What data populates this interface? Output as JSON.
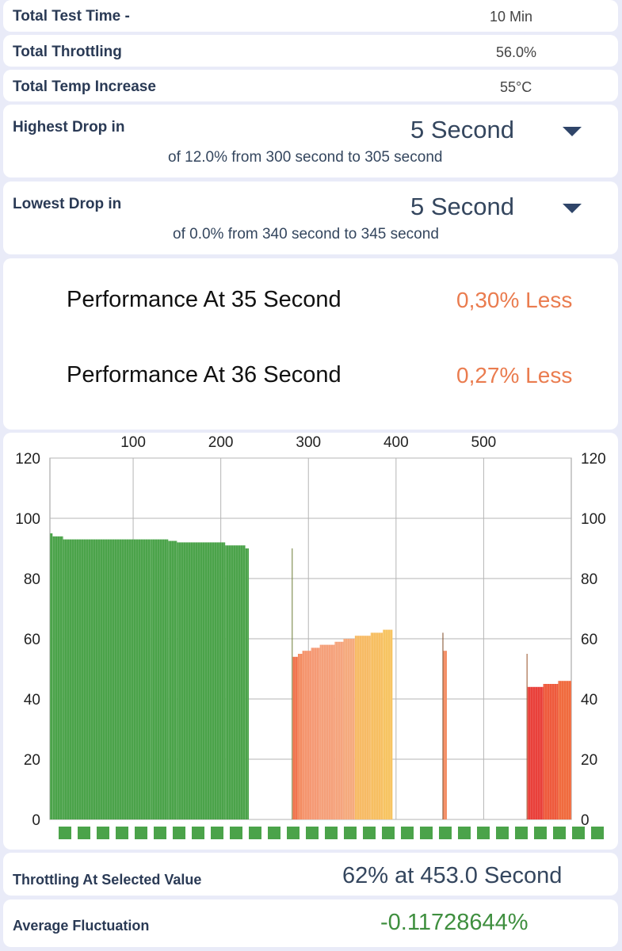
{
  "summary": {
    "test_time_label": "Total Test Time -",
    "test_time_value": "10 Min",
    "throttling_label": "Total Throttling",
    "throttling_value": "56.0%",
    "temp_label": "Total Temp Increase",
    "temp_value": "55°C"
  },
  "highest_drop": {
    "label": "Highest Drop in",
    "selected": "5 Second",
    "detail": "of 12.0% from 300 second to  305 second"
  },
  "lowest_drop": {
    "label": "Lowest Drop in",
    "selected": "5 Second",
    "detail": "of 0.0% from 340 second to  345 second"
  },
  "performance": [
    {
      "label": "Performance At 35 Second",
      "value": "0,30% Less"
    },
    {
      "label": "Performance At 36 Second",
      "value": "0,27% Less"
    }
  ],
  "chart_data": {
    "type": "bar",
    "title": "",
    "xlabel": "",
    "ylabel": "",
    "x_ticks": [
      "100",
      "200",
      "300",
      "400",
      "500"
    ],
    "xlim": [
      5,
      600
    ],
    "ylim": [
      0,
      120
    ],
    "y_ticks": [
      "0",
      "20",
      "40",
      "60",
      "80",
      "100",
      "120"
    ],
    "grid": true,
    "bars": [
      {
        "x0": 5,
        "x1": 8,
        "value": 95,
        "color": "#4ba34a"
      },
      {
        "x0": 8,
        "x1": 20,
        "value": 94,
        "color": "#4ba34a"
      },
      {
        "x0": 20,
        "x1": 120,
        "value": 93,
        "color": "#4ba34a"
      },
      {
        "x0": 120,
        "x1": 140,
        "value": 93,
        "color": "#4ba34a"
      },
      {
        "x0": 140,
        "x1": 150,
        "value": 92.5,
        "color": "#4ba34a"
      },
      {
        "x0": 150,
        "x1": 205,
        "value": 92,
        "color": "#4ba34a"
      },
      {
        "x0": 205,
        "x1": 228,
        "value": 91,
        "color": "#4ba34a"
      },
      {
        "x0": 228,
        "x1": 232,
        "value": 90,
        "color": "#4ba34a"
      },
      {
        "x0": 281,
        "x1": 282,
        "value": 90,
        "color": "#7a8a4a"
      },
      {
        "x0": 282,
        "x1": 288,
        "value": 54,
        "color": "#f0744d"
      },
      {
        "x0": 288,
        "x1": 293,
        "value": 55,
        "color": "#f48c62"
      },
      {
        "x0": 293,
        "x1": 303,
        "value": 56,
        "color": "#f5956e"
      },
      {
        "x0": 303,
        "x1": 313,
        "value": 57,
        "color": "#f59a75"
      },
      {
        "x0": 313,
        "x1": 330,
        "value": 58,
        "color": "#f5a07a"
      },
      {
        "x0": 330,
        "x1": 340,
        "value": 59,
        "color": "#f5a47d"
      },
      {
        "x0": 340,
        "x1": 353,
        "value": 60,
        "color": "#f5aa7d"
      },
      {
        "x0": 353,
        "x1": 371,
        "value": 61,
        "color": "#f7bb65"
      },
      {
        "x0": 371,
        "x1": 385,
        "value": 62,
        "color": "#f7bf62"
      },
      {
        "x0": 385,
        "x1": 396,
        "value": 63,
        "color": "#f7c462"
      },
      {
        "x0": 453,
        "x1": 454,
        "value": 62,
        "color": "#8a5a3a"
      },
      {
        "x0": 454,
        "x1": 458,
        "value": 56,
        "color": "#f48c62"
      },
      {
        "x0": 549,
        "x1": 550,
        "value": 55,
        "color": "#a0603a"
      },
      {
        "x0": 550,
        "x1": 568,
        "value": 44,
        "color": "#e9403a"
      },
      {
        "x0": 568,
        "x1": 585,
        "value": 45,
        "color": "#ee5a3c"
      },
      {
        "x0": 585,
        "x1": 600,
        "value": 46,
        "color": "#f06b3e"
      }
    ],
    "temp_strip_color": "#4ba34a"
  },
  "selected_value": {
    "label": "Throttling At Selected Value",
    "value": "62% at 453.0 Second"
  },
  "avg_fluctuation": {
    "label": "Average Fluctuation",
    "value": "-0.11728644%",
    "color": "#3f8f3f"
  }
}
